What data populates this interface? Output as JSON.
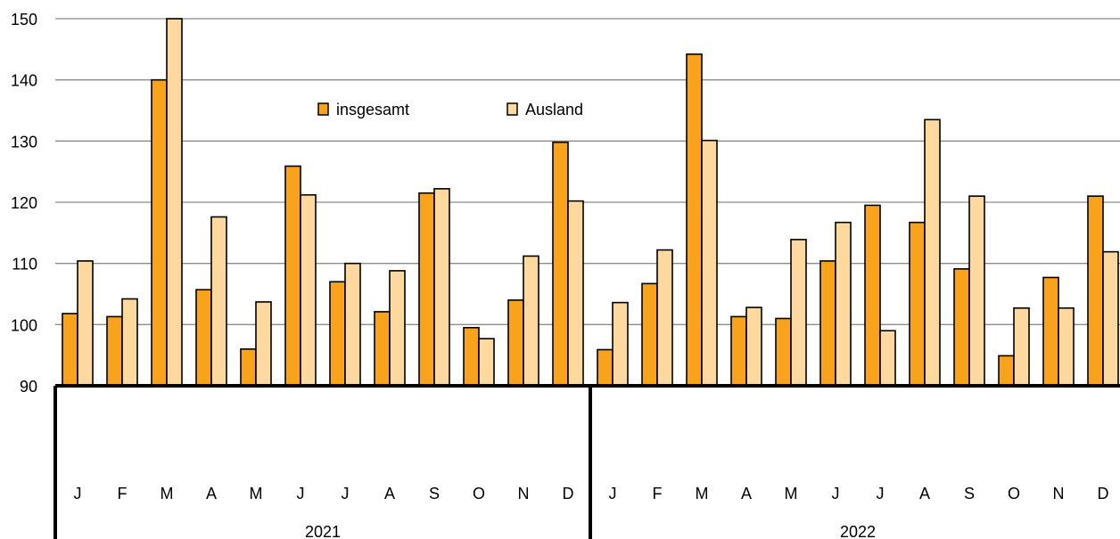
{
  "chart_data": {
    "type": "bar",
    "title": "",
    "xlabel": "",
    "ylabel": "",
    "ylim": [
      90,
      150
    ],
    "yticks": [
      90,
      100,
      110,
      120,
      130,
      140,
      150
    ],
    "grid": true,
    "legend_position": "top-center",
    "groups": [
      {
        "label": "2021",
        "months": [
          "J",
          "F",
          "M",
          "A",
          "M",
          "J",
          "J",
          "A",
          "S",
          "O",
          "N",
          "D"
        ]
      },
      {
        "label": "2022",
        "months": [
          "J",
          "F",
          "M",
          "A",
          "M",
          "J",
          "J",
          "A",
          "S",
          "O",
          "N",
          "D"
        ]
      }
    ],
    "series": [
      {
        "name": "insgesamt",
        "color": "#F9A21B",
        "values": [
          101.8,
          101.3,
          140.0,
          105.7,
          96.0,
          125.9,
          107.0,
          102.1,
          121.5,
          99.5,
          104.0,
          129.8,
          95.9,
          106.7,
          144.2,
          101.3,
          101.0,
          110.4,
          119.5,
          116.7,
          109.1,
          94.9,
          107.7,
          121.0
        ]
      },
      {
        "name": "Ausland",
        "color": "#FDD9A0",
        "values": [
          110.4,
          104.2,
          150.0,
          117.6,
          103.7,
          121.2,
          110.0,
          108.8,
          122.2,
          97.7,
          111.2,
          120.2,
          103.6,
          112.2,
          130.1,
          102.8,
          113.9,
          116.7,
          99.0,
          133.5,
          121.0,
          102.7,
          102.7,
          111.9
        ]
      }
    ]
  }
}
